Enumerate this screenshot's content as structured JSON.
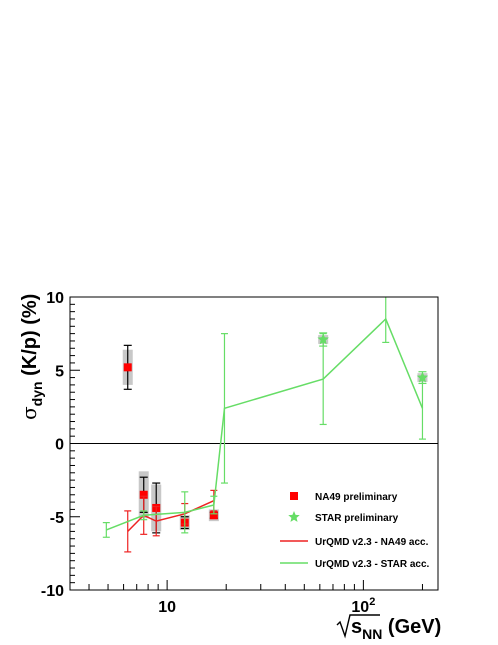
{
  "chart_data": {
    "type": "scatter",
    "xscale": "log",
    "xlim": [
      3.2,
      240
    ],
    "ylim": [
      -10,
      10
    ],
    "xlabel_base": "s",
    "xlabel_sub": "NN",
    "xlabel_unit": " (GeV)",
    "ylabel_sym": "σ",
    "ylabel_sub": "dyn",
    "ylabel_text": " (K/p) (%)",
    "x_tick_labels": [
      {
        "value": 10,
        "base": "10",
        "exp": ""
      },
      {
        "value": 100,
        "base": "10",
        "exp": "2"
      }
    ],
    "y_ticks": [
      -10,
      -5,
      0,
      5,
      10
    ],
    "zero_line": true,
    "grid": false,
    "legend_position": "right-middle",
    "series": [
      {
        "name": "NA49 preliminary",
        "kind": "points",
        "marker": "square",
        "color": "#ff0000",
        "points": [
          {
            "x": 6.3,
            "y": 5.2,
            "stat": 1.5,
            "sys": 1.2
          },
          {
            "x": 6.3,
            "y": -5.2,
            "stat": 0.0,
            "sys": 0.0,
            "hidden": true
          },
          {
            "x": 7.6,
            "y": -3.5,
            "stat": 1.2,
            "sys": 1.6
          },
          {
            "x": 8.8,
            "y": -4.4,
            "stat": 1.7,
            "sys": 1.6
          },
          {
            "x": 12.3,
            "y": -5.4,
            "stat": 0.4,
            "sys": 0.5
          },
          {
            "x": 17.3,
            "y": -4.9,
            "stat": 0.2,
            "sys": 0.4
          }
        ]
      },
      {
        "name": "STAR preliminary",
        "kind": "points",
        "marker": "star",
        "color": "#66dd66",
        "points": [
          {
            "x": 62.4,
            "y": 7.1,
            "stat": 0.45,
            "sys": 0.3
          },
          {
            "x": 200,
            "y": 4.5,
            "stat": 0.4,
            "sys": 0.3
          }
        ]
      },
      {
        "name": "UrQMD v2.3 - NA49 acc.",
        "kind": "line",
        "color": "#ee2222",
        "points": [
          {
            "x": 6.3,
            "y": -6.0,
            "err": 1.4
          },
          {
            "x": 7.6,
            "y": -4.9,
            "err": 1.3
          },
          {
            "x": 8.8,
            "y": -5.3,
            "err": 1.0
          },
          {
            "x": 12.3,
            "y": -4.8,
            "err": 0.7
          },
          {
            "x": 17.3,
            "y": -3.9,
            "err": 0.7
          }
        ]
      },
      {
        "name": "UrQMD v2.3 - STAR acc.",
        "kind": "line",
        "color": "#66dd66",
        "points": [
          {
            "x": 4.9,
            "y": -5.9,
            "err": 0.5
          },
          {
            "x": 7.6,
            "y": -4.9,
            "err": 0.3
          },
          {
            "x": 12.3,
            "y": -4.7,
            "err": 1.4
          },
          {
            "x": 17.3,
            "y": -4.2,
            "err": 0.6
          },
          {
            "x": 19.6,
            "y": 2.4,
            "err": 5.1
          },
          {
            "x": 62.4,
            "y": 4.4,
            "err": 3.1
          },
          {
            "x": 130,
            "y": 8.5,
            "err": 1.6
          },
          {
            "x": 200,
            "y": 2.4,
            "err": 2.1
          }
        ]
      }
    ]
  }
}
